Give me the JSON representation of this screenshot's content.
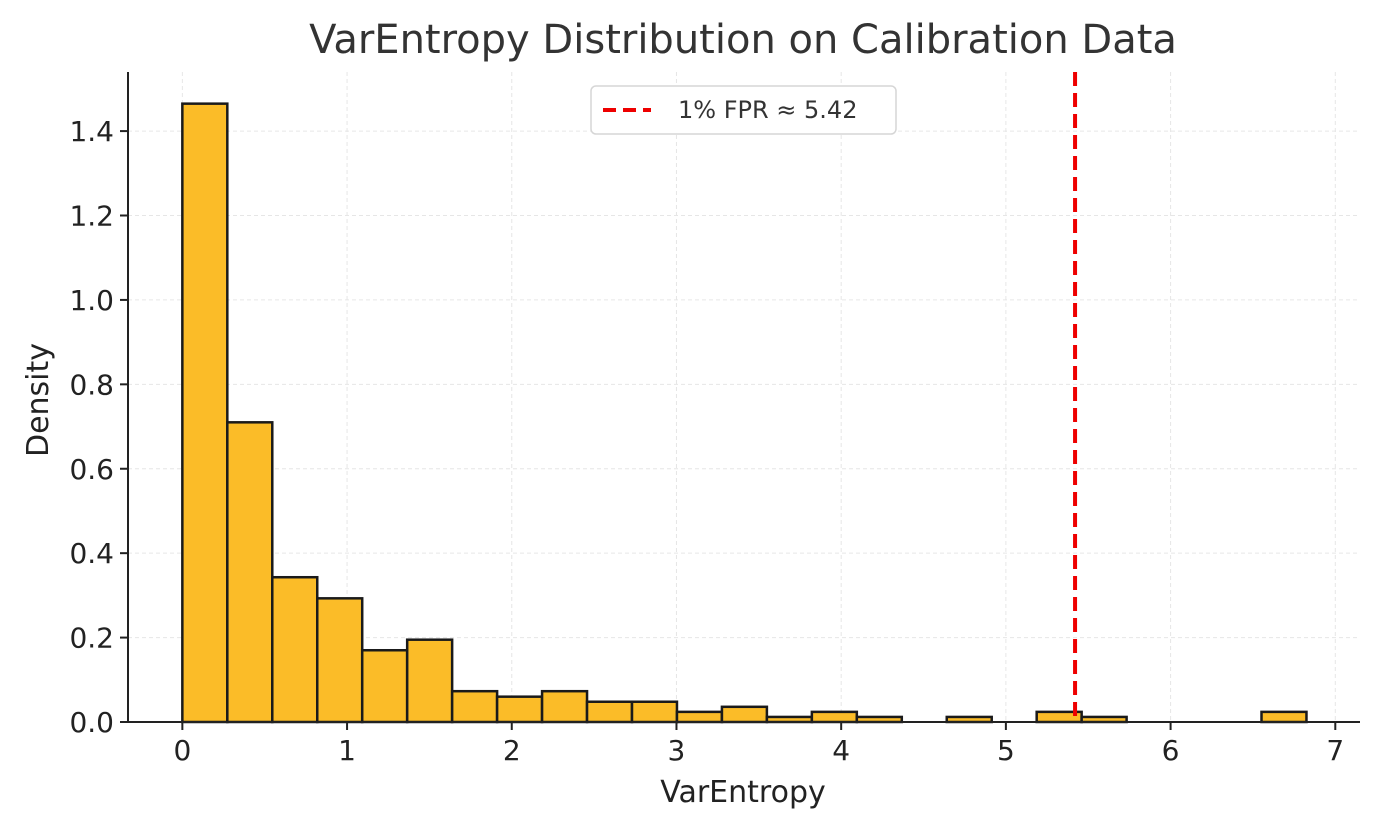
{
  "chart_data": {
    "type": "bar",
    "title": "VarEntropy Distribution on Calibration Data",
    "xlabel": "VarEntropy",
    "ylabel": "Density",
    "xlim": [
      -0.33,
      7.15
    ],
    "ylim": [
      0,
      1.54
    ],
    "xticks": [
      0,
      1,
      2,
      3,
      4,
      5,
      6,
      7
    ],
    "yticks": [
      0.0,
      0.2,
      0.4,
      0.6,
      0.8,
      1.0,
      1.2,
      1.4
    ],
    "xtick_labels": [
      "0",
      "1",
      "2",
      "3",
      "4",
      "5",
      "6",
      "7"
    ],
    "ytick_labels": [
      "0.0",
      "0.2",
      "0.4",
      "0.6",
      "0.8",
      "1.0",
      "1.2",
      "1.4"
    ],
    "grid": true,
    "legend_position": "top-center",
    "bar_color": "#fbbc28",
    "bar_edge_color": "#1a1a1a",
    "threshold_color": "#ee0000",
    "bins": [
      {
        "x0": 0.0,
        "x1": 0.273,
        "value": 1.465
      },
      {
        "x0": 0.273,
        "x1": 0.546,
        "value": 0.71
      },
      {
        "x0": 0.546,
        "x1": 0.819,
        "value": 0.343
      },
      {
        "x0": 0.819,
        "x1": 1.092,
        "value": 0.293
      },
      {
        "x0": 1.092,
        "x1": 1.365,
        "value": 0.17
      },
      {
        "x0": 1.365,
        "x1": 1.638,
        "value": 0.195
      },
      {
        "x0": 1.638,
        "x1": 1.911,
        "value": 0.073
      },
      {
        "x0": 1.911,
        "x1": 2.184,
        "value": 0.06
      },
      {
        "x0": 2.184,
        "x1": 2.457,
        "value": 0.073
      },
      {
        "x0": 2.457,
        "x1": 2.73,
        "value": 0.048
      },
      {
        "x0": 2.73,
        "x1": 3.003,
        "value": 0.048
      },
      {
        "x0": 3.003,
        "x1": 3.276,
        "value": 0.024
      },
      {
        "x0": 3.276,
        "x1": 3.549,
        "value": 0.036
      },
      {
        "x0": 3.549,
        "x1": 3.822,
        "value": 0.012
      },
      {
        "x0": 3.822,
        "x1": 4.095,
        "value": 0.024
      },
      {
        "x0": 4.095,
        "x1": 4.368,
        "value": 0.012
      },
      {
        "x0": 4.368,
        "x1": 4.641,
        "value": 0.0
      },
      {
        "x0": 4.641,
        "x1": 4.914,
        "value": 0.012
      },
      {
        "x0": 4.914,
        "x1": 5.187,
        "value": 0.0
      },
      {
        "x0": 5.187,
        "x1": 5.46,
        "value": 0.024
      },
      {
        "x0": 5.46,
        "x1": 5.733,
        "value": 0.012
      },
      {
        "x0": 5.733,
        "x1": 6.006,
        "value": 0.0
      },
      {
        "x0": 6.006,
        "x1": 6.279,
        "value": 0.0
      },
      {
        "x0": 6.279,
        "x1": 6.552,
        "value": 0.0
      },
      {
        "x0": 6.552,
        "x1": 6.825,
        "value": 0.024
      }
    ],
    "threshold": {
      "x": 5.42,
      "label": "1% FPR ≈ 5.42"
    }
  }
}
